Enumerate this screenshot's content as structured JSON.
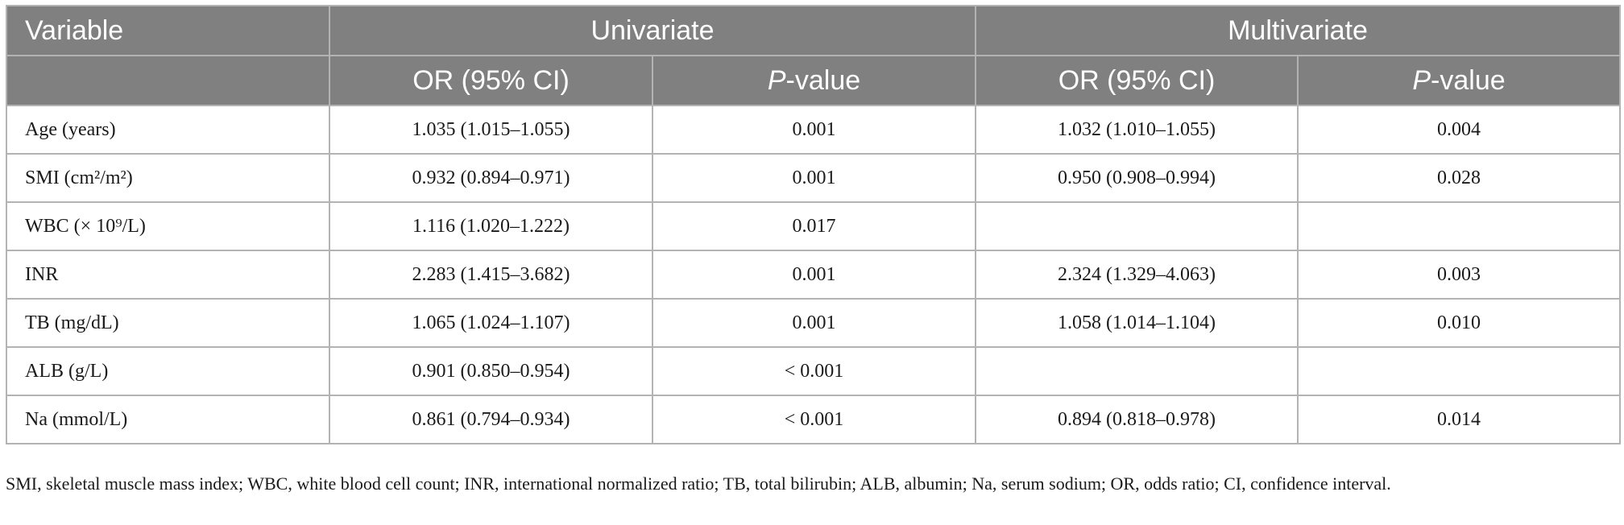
{
  "table": {
    "header": {
      "variable": "Variable",
      "univariate": "Univariate",
      "multivariate": "Multivariate",
      "or_ci": "OR (95% CI)",
      "p_italic": "P",
      "p_suffix": "-value"
    },
    "rows": [
      {
        "label": "Age (years)",
        "uni_or": "1.035 (1.015–1.055)",
        "uni_p": "0.001",
        "multi_or": "1.032 (1.010–1.055)",
        "multi_p": "0.004"
      },
      {
        "label": "SMI (cm²/m²)",
        "uni_or": "0.932 (0.894–0.971)",
        "uni_p": "0.001",
        "multi_or": "0.950 (0.908–0.994)",
        "multi_p": "0.028"
      },
      {
        "label": "WBC (× 10⁹/L)",
        "uni_or": "1.116 (1.020–1.222)",
        "uni_p": "0.017",
        "multi_or": "",
        "multi_p": ""
      },
      {
        "label": "INR",
        "uni_or": "2.283 (1.415–3.682)",
        "uni_p": "0.001",
        "multi_or": "2.324 (1.329–4.063)",
        "multi_p": "0.003"
      },
      {
        "label": "TB (mg/dL)",
        "uni_or": "1.065 (1.024–1.107)",
        "uni_p": "0.001",
        "multi_or": "1.058 (1.014–1.104)",
        "multi_p": "0.010"
      },
      {
        "label": "ALB (g/L)",
        "uni_or": "0.901 (0.850–0.954)",
        "uni_p": "< 0.001",
        "multi_or": "",
        "multi_p": ""
      },
      {
        "label": "Na (mmol/L)",
        "uni_or": "0.861 (0.794–0.934)",
        "uni_p": "< 0.001",
        "multi_or": "0.894 (0.818–0.978)",
        "multi_p": "0.014"
      }
    ]
  },
  "footnote": "SMI, skeletal muscle mass index; WBC, white blood cell count; INR, international normalized ratio; TB, total bilirubin; ALB, albumin; Na, serum sodium; OR, odds ratio; CI, confidence interval.",
  "colors": {
    "header_bg": "#808080",
    "header_text": "#ffffff",
    "border": "#b3b3b3",
    "body_text": "#1a1a1a"
  }
}
